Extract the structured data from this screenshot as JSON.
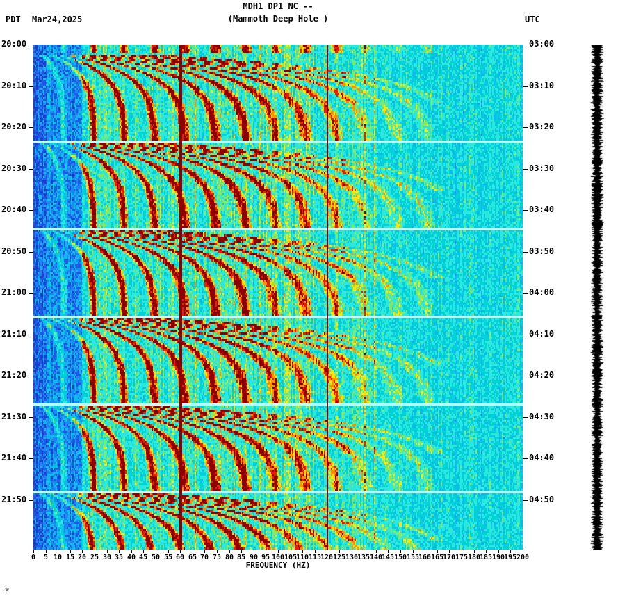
{
  "header": {
    "tz_left": "PDT",
    "date": "Mar24,2025",
    "title": "MDH1 DP1 NC --",
    "subtitle": "(Mammoth Deep Hole )",
    "tz_right": "UTC"
  },
  "footer": {
    "corner_text": ".w"
  },
  "chart_data": {
    "type": "heatmap",
    "subtype": "seismic-spectrogram",
    "title": "MDH1 DP1 NC --",
    "subtitle": "(Mammoth Deep Hole )",
    "xlabel": "FREQUENCY (HZ)",
    "x_range_hz": [
      0,
      200
    ],
    "x_tick_step_hz": 5,
    "x_ticks": [
      0,
      5,
      10,
      15,
      20,
      25,
      30,
      35,
      40,
      45,
      50,
      55,
      60,
      65,
      70,
      75,
      80,
      85,
      90,
      95,
      100,
      105,
      110,
      115,
      120,
      125,
      130,
      135,
      140,
      145,
      150,
      155,
      160,
      165,
      170,
      175,
      180,
      185,
      190,
      195,
      200
    ],
    "left_time_zone": "PDT",
    "right_time_zone": "UTC",
    "left_time_labels": [
      "20:00",
      "20:10",
      "20:20",
      "20:30",
      "20:40",
      "20:50",
      "21:00",
      "21:10",
      "21:20",
      "21:30",
      "21:40",
      "21:50"
    ],
    "right_time_labels": [
      "03:00",
      "03:10",
      "03:20",
      "03:30",
      "03:40",
      "03:50",
      "04:00",
      "04:10",
      "04:20",
      "04:30",
      "04:40",
      "04:50"
    ],
    "time_axis_minutes": 122,
    "features": {
      "mains_hum_lines_hz": [
        60,
        120
      ],
      "mains_line_color": "#8B0000",
      "harmonic_fan_period_min": 21.2,
      "harmonic_fan_first_start_min": 2.0,
      "fundamental_start_hz": 2.5,
      "fundamental_plateau_hz": 12.5,
      "low_freq_noise_band_max_hz": 20,
      "pale_row_color": "#BEFFFF",
      "background_color": "#00D2D8",
      "palette_stops": [
        [
          0.1,
          "#1C3FC8"
        ],
        [
          0.2,
          "#2058E8"
        ],
        [
          0.3,
          "#1E86F0"
        ],
        [
          0.4,
          "#10B6EE"
        ],
        [
          0.52,
          "#00D2D8"
        ],
        [
          0.66,
          "#2CE8DC"
        ],
        [
          0.74,
          "#8CE858"
        ],
        [
          0.82,
          "#FFE400"
        ],
        [
          0.9,
          "#FF9000"
        ],
        [
          0.99,
          "#E62000"
        ],
        [
          9.0,
          "#8B0000"
        ]
      ]
    },
    "render_seed": 20250324,
    "right_strip": {
      "description": "clipped seismogram amplitude strip",
      "color": "#000000"
    }
  }
}
